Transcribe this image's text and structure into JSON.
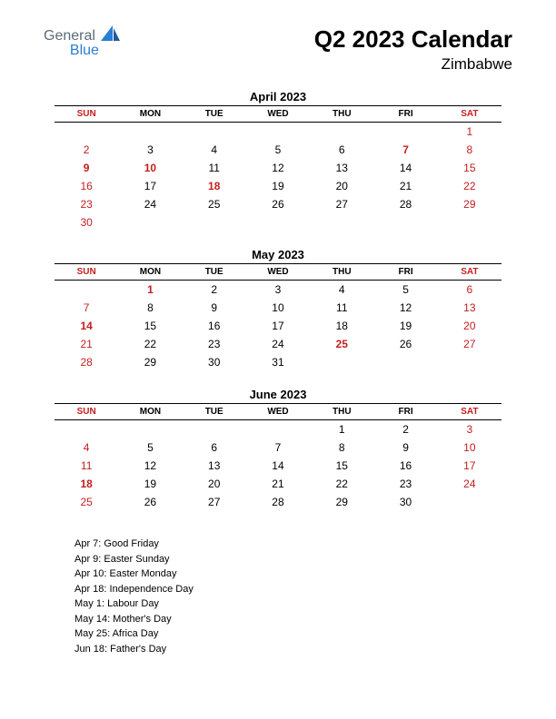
{
  "logo": {
    "text1": "General",
    "text2": "Blue"
  },
  "title": "Q2 2023 Calendar",
  "subtitle": "Zimbabwe",
  "colors": {
    "red": "#c41e1e",
    "black": "#000000",
    "logo_grey": "#5a6b7a",
    "logo_blue": "#2a7fd4",
    "background": "#ffffff"
  },
  "typography": {
    "title_fontsize": 26,
    "subtitle_fontsize": 17,
    "month_title_fontsize": 13,
    "dayheader_fontsize": 10,
    "daycell_fontsize": 12,
    "holiday_fontsize": 11
  },
  "day_headers": [
    "SUN",
    "MON",
    "TUE",
    "WED",
    "THU",
    "FRI",
    "SAT"
  ],
  "months": [
    {
      "title": "April 2023",
      "weeks": [
        [
          {
            "d": ""
          },
          {
            "d": ""
          },
          {
            "d": ""
          },
          {
            "d": ""
          },
          {
            "d": ""
          },
          {
            "d": ""
          },
          {
            "d": "1",
            "red": true
          }
        ],
        [
          {
            "d": "2",
            "red": true
          },
          {
            "d": "3"
          },
          {
            "d": "4"
          },
          {
            "d": "5"
          },
          {
            "d": "6"
          },
          {
            "d": "7",
            "red": true,
            "bold": true
          },
          {
            "d": "8",
            "red": true
          }
        ],
        [
          {
            "d": "9",
            "red": true,
            "bold": true
          },
          {
            "d": "10",
            "red": true,
            "bold": true
          },
          {
            "d": "11"
          },
          {
            "d": "12"
          },
          {
            "d": "13"
          },
          {
            "d": "14"
          },
          {
            "d": "15",
            "red": true
          }
        ],
        [
          {
            "d": "16",
            "red": true
          },
          {
            "d": "17"
          },
          {
            "d": "18",
            "red": true,
            "bold": true
          },
          {
            "d": "19"
          },
          {
            "d": "20"
          },
          {
            "d": "21"
          },
          {
            "d": "22",
            "red": true
          }
        ],
        [
          {
            "d": "23",
            "red": true
          },
          {
            "d": "24"
          },
          {
            "d": "25"
          },
          {
            "d": "26"
          },
          {
            "d": "27"
          },
          {
            "d": "28"
          },
          {
            "d": "29",
            "red": true
          }
        ],
        [
          {
            "d": "30",
            "red": true
          },
          {
            "d": ""
          },
          {
            "d": ""
          },
          {
            "d": ""
          },
          {
            "d": ""
          },
          {
            "d": ""
          },
          {
            "d": ""
          }
        ]
      ]
    },
    {
      "title": "May 2023",
      "weeks": [
        [
          {
            "d": ""
          },
          {
            "d": "1",
            "red": true,
            "bold": true
          },
          {
            "d": "2"
          },
          {
            "d": "3"
          },
          {
            "d": "4"
          },
          {
            "d": "5"
          },
          {
            "d": "6",
            "red": true
          }
        ],
        [
          {
            "d": "7",
            "red": true
          },
          {
            "d": "8"
          },
          {
            "d": "9"
          },
          {
            "d": "10"
          },
          {
            "d": "11"
          },
          {
            "d": "12"
          },
          {
            "d": "13",
            "red": true
          }
        ],
        [
          {
            "d": "14",
            "red": true,
            "bold": true
          },
          {
            "d": "15"
          },
          {
            "d": "16"
          },
          {
            "d": "17"
          },
          {
            "d": "18"
          },
          {
            "d": "19"
          },
          {
            "d": "20",
            "red": true
          }
        ],
        [
          {
            "d": "21",
            "red": true
          },
          {
            "d": "22"
          },
          {
            "d": "23"
          },
          {
            "d": "24"
          },
          {
            "d": "25",
            "red": true,
            "bold": true
          },
          {
            "d": "26"
          },
          {
            "d": "27",
            "red": true
          }
        ],
        [
          {
            "d": "28",
            "red": true
          },
          {
            "d": "29"
          },
          {
            "d": "30"
          },
          {
            "d": "31"
          },
          {
            "d": ""
          },
          {
            "d": ""
          },
          {
            "d": ""
          }
        ]
      ]
    },
    {
      "title": "June 2023",
      "weeks": [
        [
          {
            "d": ""
          },
          {
            "d": ""
          },
          {
            "d": ""
          },
          {
            "d": ""
          },
          {
            "d": "1"
          },
          {
            "d": "2"
          },
          {
            "d": "3",
            "red": true
          }
        ],
        [
          {
            "d": "4",
            "red": true
          },
          {
            "d": "5"
          },
          {
            "d": "6"
          },
          {
            "d": "7"
          },
          {
            "d": "8"
          },
          {
            "d": "9"
          },
          {
            "d": "10",
            "red": true
          }
        ],
        [
          {
            "d": "11",
            "red": true
          },
          {
            "d": "12"
          },
          {
            "d": "13"
          },
          {
            "d": "14"
          },
          {
            "d": "15"
          },
          {
            "d": "16"
          },
          {
            "d": "17",
            "red": true
          }
        ],
        [
          {
            "d": "18",
            "red": true,
            "bold": true
          },
          {
            "d": "19"
          },
          {
            "d": "20"
          },
          {
            "d": "21"
          },
          {
            "d": "22"
          },
          {
            "d": "23"
          },
          {
            "d": "24",
            "red": true
          }
        ],
        [
          {
            "d": "25",
            "red": true
          },
          {
            "d": "26"
          },
          {
            "d": "27"
          },
          {
            "d": "28"
          },
          {
            "d": "29"
          },
          {
            "d": "30"
          },
          {
            "d": ""
          }
        ]
      ]
    }
  ],
  "holidays": [
    "Apr 7: Good Friday",
    "Apr 9: Easter Sunday",
    "Apr 10: Easter Monday",
    "Apr 18: Independence Day",
    "May 1: Labour Day",
    "May 14: Mother's Day",
    "May 25: Africa Day",
    "Jun 18: Father's Day"
  ]
}
